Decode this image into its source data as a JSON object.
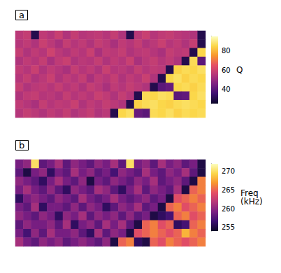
{
  "chart_data": [
    {
      "type": "heatmap",
      "title": "a",
      "colorbar_label": "Q",
      "tick_labels": false,
      "colorbar_range": [
        25,
        95
      ],
      "colorbar_ticks": [
        40,
        60,
        80
      ],
      "cells": [
        [
          56,
          58,
          30,
          57,
          55,
          59,
          54,
          58,
          55,
          56,
          57,
          55,
          58,
          54,
          30,
          56,
          59,
          55,
          57,
          58,
          56,
          55,
          54,
          30
        ],
        [
          55,
          57,
          54,
          59,
          56,
          53,
          58,
          55,
          57,
          54,
          58,
          56,
          53,
          57,
          55,
          58,
          54,
          56,
          59,
          55,
          57,
          54,
          58,
          30
        ],
        [
          58,
          54,
          57,
          55,
          60,
          56,
          54,
          57,
          55,
          59,
          53,
          57,
          56,
          58,
          54,
          56,
          57,
          55,
          53,
          58,
          56,
          57,
          30,
          85
        ],
        [
          54,
          57,
          55,
          58,
          53,
          57,
          59,
          54,
          56,
          55,
          58,
          54,
          57,
          55,
          59,
          53,
          56,
          58,
          55,
          57,
          54,
          30,
          86,
          40
        ],
        [
          57,
          55,
          59,
          54,
          57,
          55,
          53,
          58,
          55,
          57,
          54,
          59,
          55,
          56,
          54,
          58,
          55,
          57,
          56,
          30,
          84,
          86,
          85,
          87
        ],
        [
          55,
          58,
          54,
          56,
          59,
          54,
          57,
          55,
          58,
          53,
          57,
          55,
          58,
          54,
          57,
          55,
          59,
          54,
          30,
          85,
          87,
          84,
          86,
          85
        ],
        [
          58,
          54,
          56,
          57,
          55,
          58,
          55,
          57,
          54,
          58,
          56,
          53,
          57,
          55,
          58,
          56,
          54,
          30,
          40,
          42,
          85,
          86,
          84,
          86
        ],
        [
          54,
          57,
          58,
          55,
          56,
          54,
          58,
          55,
          57,
          55,
          59,
          57,
          54,
          58,
          55,
          30,
          86,
          85,
          87,
          86,
          40,
          41,
          85,
          87
        ],
        [
          57,
          55,
          53,
          58,
          55,
          57,
          56,
          59,
          54,
          57,
          55,
          58,
          56,
          54,
          30,
          84,
          86,
          87,
          85,
          84,
          86,
          87,
          86,
          85
        ],
        [
          55,
          58,
          56,
          54,
          57,
          55,
          58,
          54,
          56,
          58,
          54,
          56,
          30,
          85,
          87,
          42,
          40,
          86,
          85,
          87,
          84,
          86,
          85,
          86
        ]
      ]
    },
    {
      "type": "heatmap",
      "title": "b",
      "colorbar_label": "Freq\n(kHz)",
      "tick_labels": false,
      "colorbar_range": [
        254,
        272
      ],
      "colorbar_ticks": [
        255,
        260,
        265,
        270
      ],
      "cells": [
        [
          259,
          260,
          270,
          258,
          259,
          261,
          258,
          260,
          259,
          258,
          260,
          259,
          261,
          258,
          270,
          259,
          260,
          258,
          261,
          259,
          260,
          258,
          259,
          255
        ],
        [
          258,
          255,
          259,
          260,
          256,
          259,
          258,
          261,
          259,
          260,
          258,
          259,
          257,
          260,
          259,
          258,
          261,
          259,
          258,
          260,
          259,
          261,
          258,
          255
        ],
        [
          260,
          259,
          258,
          256,
          259,
          261,
          259,
          258,
          260,
          255,
          259,
          258,
          260,
          259,
          258,
          260,
          259,
          261,
          258,
          259,
          260,
          258,
          255,
          266
        ],
        [
          259,
          261,
          259,
          258,
          260,
          258,
          256,
          260,
          259,
          258,
          261,
          260,
          258,
          256,
          259,
          261,
          258,
          260,
          259,
          258,
          261,
          255,
          265,
          266
        ],
        [
          256,
          259,
          260,
          259,
          258,
          260,
          259,
          258,
          261,
          259,
          258,
          259,
          261,
          259,
          258,
          259,
          260,
          258,
          259,
          255,
          264,
          265,
          266,
          265
        ],
        [
          259,
          258,
          261,
          256,
          259,
          259,
          258,
          260,
          258,
          260,
          259,
          256,
          258,
          260,
          259,
          261,
          258,
          259,
          255,
          265,
          266,
          264,
          265,
          266
        ],
        [
          260,
          259,
          258,
          260,
          259,
          256,
          260,
          259,
          261,
          258,
          260,
          259,
          260,
          258,
          260,
          258,
          259,
          255,
          256,
          257,
          265,
          266,
          264,
          265
        ],
        [
          258,
          260,
          259,
          259,
          260,
          258,
          261,
          256,
          259,
          260,
          258,
          261,
          259,
          261,
          258,
          255,
          265,
          266,
          264,
          265,
          256,
          257,
          265,
          266
        ],
        [
          259,
          257,
          260,
          258,
          261,
          259,
          259,
          260,
          258,
          256,
          261,
          258,
          260,
          259,
          255,
          264,
          265,
          266,
          265,
          264,
          265,
          268,
          266,
          265
        ],
        [
          261,
          259,
          258,
          260,
          259,
          260,
          258,
          259,
          260,
          259,
          258,
          260,
          255,
          265,
          266,
          256,
          255,
          265,
          264,
          266,
          265,
          264,
          265,
          266
        ]
      ]
    }
  ]
}
